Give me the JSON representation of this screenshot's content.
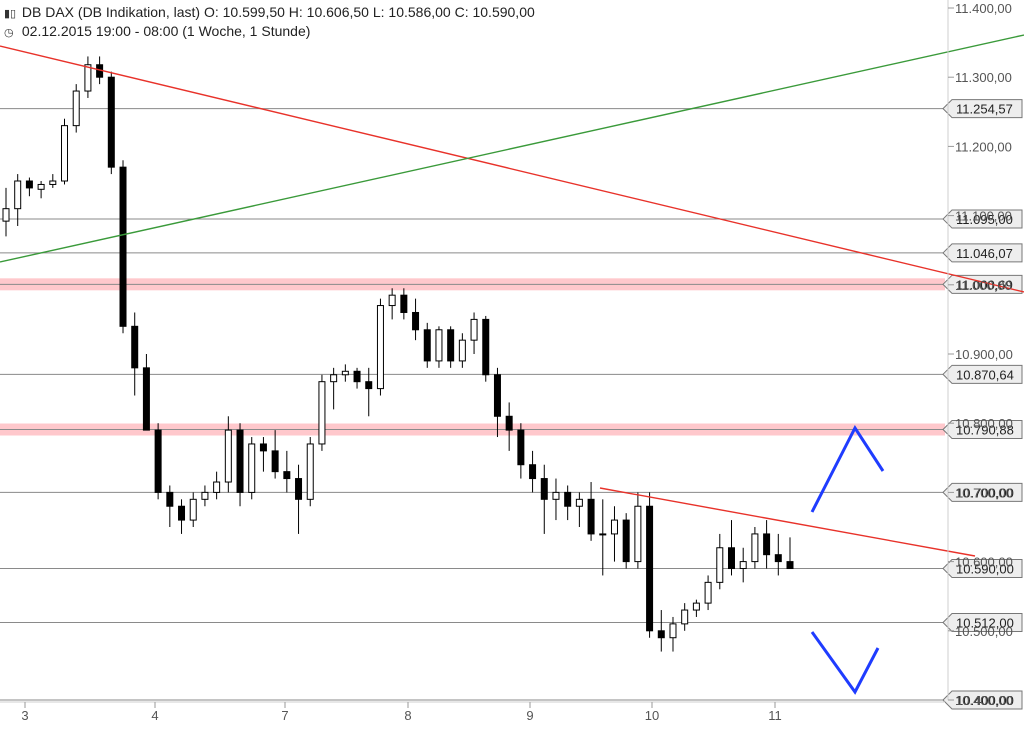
{
  "header": {
    "line1_icon": "candlestick-icon",
    "line1": "DB DAX (DB Indikation, last)  O: 10.599,50  H: 10.606,50  L: 10.586,00  C: 10.590,00",
    "line2_icon": "clock-icon",
    "line2": "02.12.2015 19:00 - 08:00 (1 Woche, 1 Stunde)"
  },
  "chart_data": {
    "type": "candlestick",
    "title": "",
    "ylim": [
      10400,
      11400
    ],
    "y_ticks": [
      "11.400,00",
      "11.300,00",
      "11.200,00",
      "11.100,00",
      "11.000,00",
      "10.900,00",
      "10.800,00",
      "10.700,00",
      "10.600,00",
      "10.500,00",
      "10.400,00"
    ],
    "x_ticks": [
      "3",
      "4",
      "7",
      "8",
      "9",
      "10",
      "11"
    ],
    "horizontal_levels": [
      {
        "label": "11.254,57",
        "value": 11254.57,
        "style": "gray"
      },
      {
        "label": "11.095,00",
        "value": 11095.0,
        "style": "gray"
      },
      {
        "label": "11.046,07",
        "value": 11046.07,
        "style": "gray"
      },
      {
        "label": "11.000,69",
        "value": 11000.69,
        "style": "zone"
      },
      {
        "label": "10.870,64",
        "value": 10870.64,
        "style": "gray"
      },
      {
        "label": "10.790,88",
        "value": 10790.88,
        "style": "zone"
      },
      {
        "label": "10.700,00",
        "value": 10700.0,
        "style": "gray"
      },
      {
        "label": "10.590,00",
        "value": 10590.0,
        "style": "gray"
      },
      {
        "label": "10.512,00",
        "value": 10512.0,
        "style": "gray"
      },
      {
        "label": "10.400,00",
        "value": 10400.0,
        "style": "gray"
      }
    ],
    "trendlines": [
      {
        "color": "#e8322a",
        "from": [
          0,
          11330
        ],
        "to": [
          1024,
          10955
        ]
      },
      {
        "color": "#3a9a3a",
        "from": [
          0,
          10960
        ],
        "to": [
          1024,
          11350
        ]
      },
      {
        "color": "#e8322a",
        "from": [
          600,
          10698
        ],
        "to": [
          975,
          10595
        ]
      }
    ],
    "arrows": [
      {
        "direction": "up",
        "color": "#1f3cff"
      },
      {
        "direction": "down",
        "color": "#1f3cff"
      }
    ],
    "colors": {
      "line": "#8a8a8a",
      "zone": "#ffc8cc",
      "up": "#ffffff",
      "down": "#000000",
      "label_bg": "#eeeeee"
    }
  }
}
